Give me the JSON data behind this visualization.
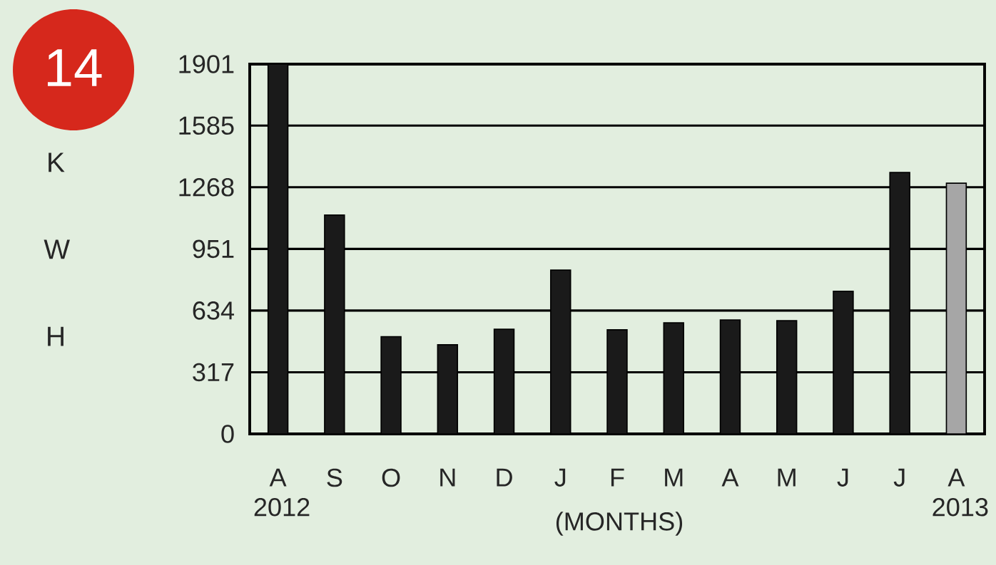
{
  "chart_data": {
    "type": "bar",
    "ylabel": "K W H",
    "xlabel": "(MONTHS)",
    "annotations": [
      "14"
    ],
    "categories": [
      "A 2012",
      "S",
      "O",
      "N",
      "D",
      "J",
      "F",
      "M",
      "A",
      "M",
      "J",
      "J",
      "A 2013"
    ],
    "values": [
      1901,
      1125,
      500,
      458,
      538,
      842,
      535,
      571,
      586,
      582,
      733,
      1344,
      1289
    ],
    "colors": [
      "#1a1a1a",
      "#1a1a1a",
      "#1a1a1a",
      "#1a1a1a",
      "#1a1a1a",
      "#1a1a1a",
      "#1a1a1a",
      "#1a1a1a",
      "#1a1a1a",
      "#1a1a1a",
      "#1a1a1a",
      "#1a1a1a",
      "#a6a6a6"
    ],
    "ylim": [
      0,
      1901
    ],
    "yticks": [
      0,
      317,
      634,
      951,
      1268,
      1585,
      1901
    ],
    "grid": "y"
  }
}
